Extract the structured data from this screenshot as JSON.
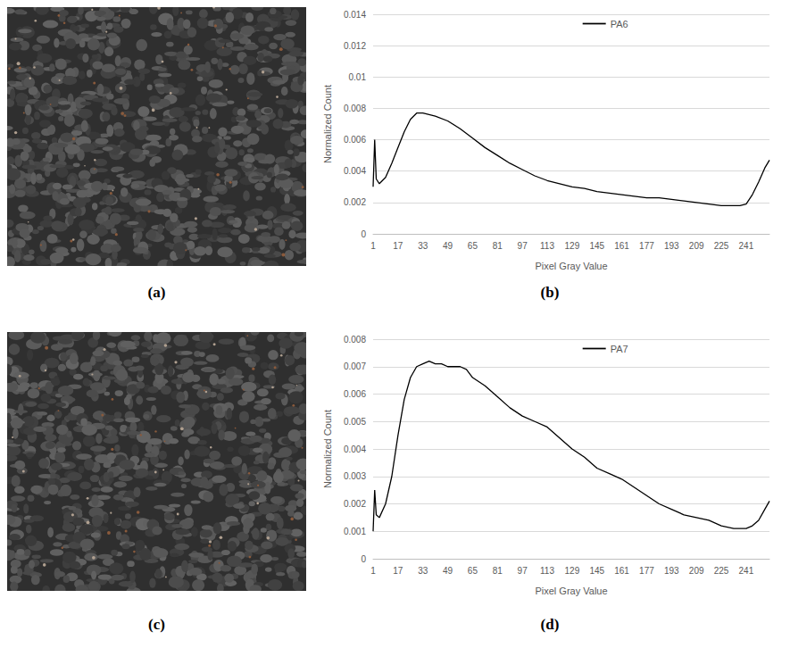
{
  "image_panels": [
    "(a)",
    "(c)"
  ],
  "chart_data": [
    {
      "type": "line",
      "panel": "(b)",
      "xlabel": "Pixel Gray Value",
      "ylabel": "Normalized Count",
      "legend": "top",
      "grid": true,
      "x": [
        1,
        2,
        3,
        5,
        9,
        13,
        17,
        21,
        25,
        29,
        33,
        41,
        49,
        57,
        65,
        73,
        81,
        89,
        97,
        105,
        113,
        121,
        129,
        137,
        145,
        153,
        161,
        169,
        177,
        185,
        193,
        201,
        209,
        217,
        225,
        233,
        237,
        241,
        245,
        249,
        253,
        256
      ],
      "series": [
        {
          "name": "PA6",
          "color": "#000000",
          "values": [
            0.003,
            0.006,
            0.0035,
            0.0032,
            0.0036,
            0.0045,
            0.0055,
            0.0065,
            0.0073,
            0.0077,
            0.0077,
            0.0075,
            0.0072,
            0.0067,
            0.0061,
            0.0055,
            0.005,
            0.0045,
            0.0041,
            0.0037,
            0.0034,
            0.0032,
            0.003,
            0.0029,
            0.0027,
            0.0026,
            0.0025,
            0.0024,
            0.0023,
            0.0023,
            0.0022,
            0.0021,
            0.002,
            0.0019,
            0.0018,
            0.0018,
            0.0018,
            0.0019,
            0.0025,
            0.0033,
            0.0042,
            0.0047
          ]
        }
      ],
      "xlim": [
        1,
        256
      ],
      "xticks": [
        1,
        17,
        33,
        49,
        65,
        81,
        97,
        113,
        129,
        145,
        161,
        177,
        193,
        209,
        225,
        241
      ],
      "ylim": [
        0,
        0.014
      ],
      "yticks": [
        0,
        0.002,
        0.004,
        0.006,
        0.008,
        0.01,
        0.012,
        0.014
      ]
    },
    {
      "type": "line",
      "panel": "(d)",
      "xlabel": "Pixel Gray Value",
      "ylabel": "Normalized Count",
      "legend": "top",
      "grid": true,
      "x": [
        1,
        2,
        3,
        5,
        9,
        13,
        17,
        21,
        25,
        29,
        33,
        37,
        41,
        45,
        49,
        53,
        57,
        61,
        65,
        73,
        81,
        89,
        97,
        105,
        113,
        121,
        129,
        137,
        145,
        153,
        161,
        169,
        177,
        185,
        193,
        201,
        209,
        217,
        225,
        233,
        237,
        241,
        245,
        249,
        253,
        256
      ],
      "series": [
        {
          "name": "PA7",
          "color": "#000000",
          "values": [
            0.001,
            0.0025,
            0.0016,
            0.0015,
            0.002,
            0.003,
            0.0045,
            0.0058,
            0.0066,
            0.007,
            0.0071,
            0.0072,
            0.0071,
            0.0071,
            0.007,
            0.007,
            0.007,
            0.0069,
            0.0066,
            0.0063,
            0.0059,
            0.0055,
            0.0052,
            0.005,
            0.0048,
            0.0044,
            0.004,
            0.0037,
            0.0033,
            0.0031,
            0.0029,
            0.0026,
            0.0023,
            0.002,
            0.0018,
            0.0016,
            0.0015,
            0.0014,
            0.0012,
            0.0011,
            0.0011,
            0.0011,
            0.0012,
            0.0014,
            0.0018,
            0.0021
          ]
        }
      ],
      "xlim": [
        1,
        256
      ],
      "xticks": [
        1,
        17,
        33,
        49,
        65,
        81,
        97,
        113,
        129,
        145,
        161,
        177,
        193,
        209,
        225,
        241
      ],
      "ylim": [
        0,
        0.008
      ],
      "yticks": [
        0,
        0.001,
        0.002,
        0.003,
        0.004,
        0.005,
        0.006,
        0.007,
        0.008
      ]
    }
  ]
}
